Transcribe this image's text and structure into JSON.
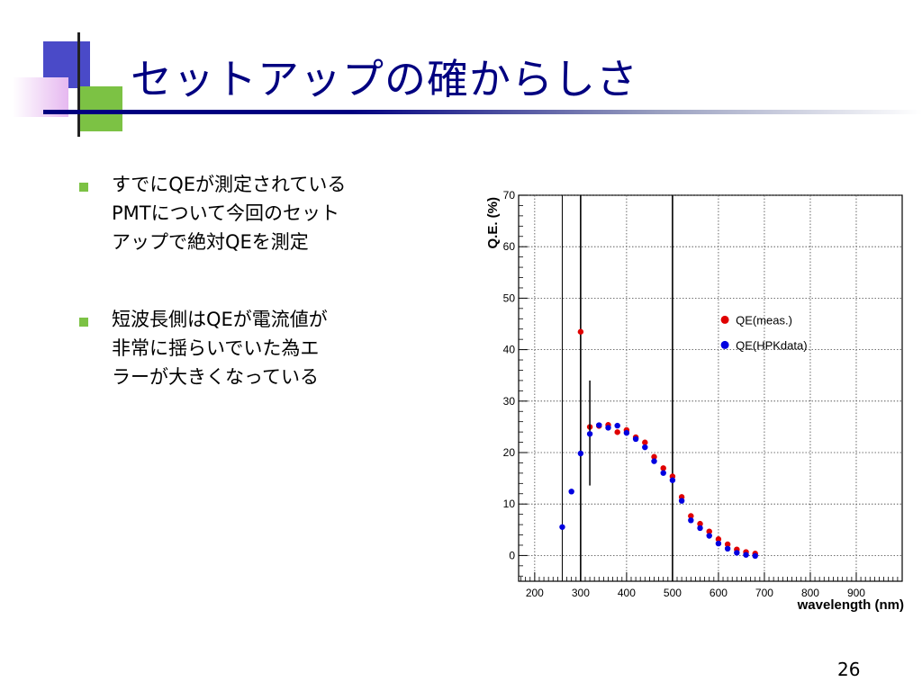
{
  "slide": {
    "title": "セットアップの確からしさ",
    "page_number": "26",
    "bullets": [
      {
        "lines": [
          "すでにQEが測定されている",
          "PMTについて今回のセット",
          "アップで絶対QEを測定"
        ]
      },
      {
        "lines": [
          "短波長側はQEが電流値が",
          "非常に揺らいでいた為エ",
          "ラーが大きくなっている"
        ]
      }
    ],
    "colors": {
      "title": "#000080",
      "bullet": "#7cc244",
      "deco_blue": "#4a4ac8",
      "deco_green": "#7cc244",
      "deco_pink": "#e6b8f0"
    }
  },
  "chart_data": {
    "type": "scatter",
    "title": "",
    "xlabel": "wavelength (nm)",
    "ylabel": "Q.E. (%)",
    "xlim": [
      165,
      1000
    ],
    "ylim": [
      -5,
      70
    ],
    "xticks": [
      200,
      300,
      400,
      500,
      600,
      700,
      800,
      900
    ],
    "yticks": [
      0,
      10,
      20,
      30,
      40,
      50,
      60,
      70
    ],
    "grid": true,
    "legend_position": "right",
    "vertical_lines": [
      260,
      300,
      500
    ],
    "series": [
      {
        "name": "QE(meas.)",
        "color": "#e00000",
        "x": [
          300,
          320,
          340,
          360,
          380,
          400,
          420,
          440,
          460,
          480,
          500,
          520,
          540,
          560,
          580,
          600,
          620,
          640,
          660,
          680
        ],
        "y": [
          43.3,
          24.8,
          25.0,
          25.2,
          23.8,
          24.2,
          22.8,
          21.8,
          19.0,
          16.8,
          15.2,
          11.2,
          7.5,
          6.0,
          4.5,
          3.0,
          2.0,
          1.0,
          0.5,
          0.2
        ],
        "yerr": [
          0,
          0,
          0,
          0,
          0,
          0,
          0,
          0,
          0,
          0,
          0,
          0,
          0,
          0,
          0,
          0,
          0,
          0,
          0,
          0
        ]
      },
      {
        "name": "QE(HPKdata)",
        "color": "#0000e0",
        "x": [
          260,
          280,
          300,
          320,
          340,
          360,
          380,
          400,
          420,
          440,
          460,
          480,
          500,
          520,
          540,
          560,
          580,
          600,
          620,
          640,
          660,
          680
        ],
        "y": [
          5.7,
          12.6,
          20.0,
          23.8,
          25.5,
          25.0,
          25.4,
          24.0,
          22.8,
          21.2,
          18.5,
          16.2,
          14.8,
          10.8,
          7.0,
          5.5,
          4.0,
          2.5,
          1.5,
          0.7,
          0.3,
          0.1
        ],
        "yerr": [
          0,
          0,
          0,
          10.2,
          0,
          0,
          0,
          0,
          0,
          0,
          0,
          0,
          0,
          0,
          0,
          0,
          0,
          0,
          0,
          0,
          0,
          0
        ]
      }
    ]
  }
}
